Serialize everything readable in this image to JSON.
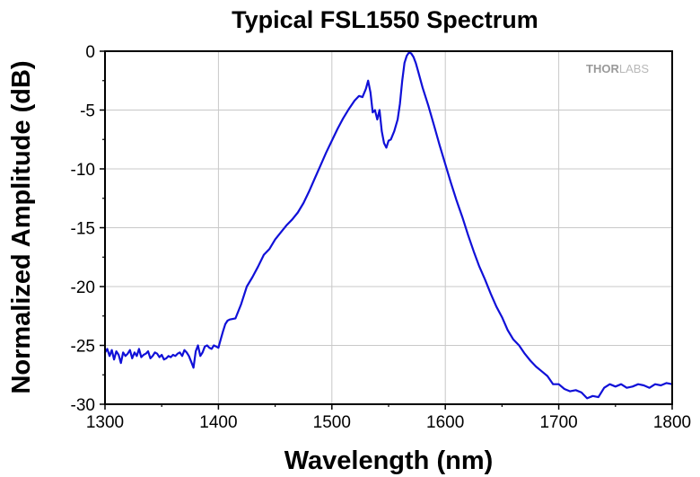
{
  "chart_data": {
    "type": "line",
    "title": "Typical FSL1550 Spectrum",
    "xlabel": "Wavelength (nm)",
    "ylabel": "Normalized Amplitude (dB)",
    "xlim": [
      1300,
      1800
    ],
    "ylim": [
      -30,
      0
    ],
    "xticks": [
      1300,
      1400,
      1500,
      1600,
      1700,
      1800
    ],
    "yticks": [
      0,
      -5,
      -10,
      -15,
      -20,
      -25,
      -30
    ],
    "grid": true,
    "logo": {
      "text_main": "THOR",
      "text_sub": "LABS"
    },
    "series": [
      {
        "color": "#1010d8",
        "x": [
          1300,
          1302,
          1304,
          1306,
          1308,
          1310,
          1312,
          1314,
          1316,
          1318,
          1320,
          1322,
          1324,
          1326,
          1328,
          1330,
          1332,
          1334,
          1336,
          1338,
          1340,
          1342,
          1344,
          1346,
          1348,
          1350,
          1352,
          1354,
          1356,
          1358,
          1360,
          1362,
          1364,
          1366,
          1368,
          1370,
          1372,
          1374,
          1376,
          1378,
          1380,
          1382,
          1384,
          1386,
          1388,
          1390,
          1392,
          1394,
          1396,
          1398,
          1400,
          1402,
          1404,
          1406,
          1408,
          1410,
          1415,
          1420,
          1425,
          1430,
          1435,
          1440,
          1445,
          1450,
          1455,
          1460,
          1465,
          1470,
          1475,
          1480,
          1485,
          1490,
          1495,
          1500,
          1505,
          1510,
          1515,
          1520,
          1524,
          1527,
          1530,
          1532,
          1534,
          1536,
          1538,
          1540,
          1542,
          1544,
          1546,
          1548,
          1550,
          1552,
          1555,
          1558,
          1560,
          1562,
          1564,
          1566,
          1568,
          1570,
          1572,
          1574,
          1576,
          1578,
          1580,
          1585,
          1590,
          1595,
          1600,
          1605,
          1610,
          1615,
          1620,
          1625,
          1630,
          1635,
          1640,
          1645,
          1650,
          1655,
          1660,
          1665,
          1670,
          1675,
          1680,
          1685,
          1690,
          1695,
          1700,
          1705,
          1710,
          1715,
          1720,
          1725,
          1730,
          1735,
          1740,
          1745,
          1750,
          1755,
          1760,
          1765,
          1770,
          1775,
          1780,
          1785,
          1790,
          1795,
          1800
        ],
        "y": [
          -25.6,
          -25.3,
          -25.9,
          -25.4,
          -26.2,
          -25.5,
          -25.8,
          -26.5,
          -25.6,
          -25.9,
          -25.7,
          -25.4,
          -26.1,
          -25.6,
          -25.9,
          -25.3,
          -26.0,
          -25.8,
          -25.7,
          -25.5,
          -26.1,
          -25.9,
          -25.6,
          -25.7,
          -26.0,
          -25.8,
          -26.2,
          -26.1,
          -25.9,
          -26.0,
          -25.8,
          -25.9,
          -25.7,
          -25.6,
          -25.9,
          -25.4,
          -25.6,
          -25.9,
          -26.4,
          -26.9,
          -25.5,
          -25.0,
          -25.9,
          -25.6,
          -25.1,
          -25.0,
          -25.2,
          -25.3,
          -25.0,
          -25.1,
          -25.2,
          -24.5,
          -23.8,
          -23.2,
          -22.9,
          -22.8,
          -22.7,
          -21.5,
          -20.0,
          -19.2,
          -18.3,
          -17.3,
          -16.8,
          -16.0,
          -15.4,
          -14.8,
          -14.3,
          -13.7,
          -12.9,
          -11.9,
          -10.8,
          -9.7,
          -8.6,
          -7.6,
          -6.6,
          -5.7,
          -4.9,
          -4.2,
          -3.8,
          -3.9,
          -3.2,
          -2.5,
          -3.5,
          -5.2,
          -5.0,
          -5.8,
          -5.0,
          -6.8,
          -7.8,
          -8.2,
          -7.6,
          -7.5,
          -6.8,
          -5.8,
          -4.5,
          -2.5,
          -1.0,
          -0.4,
          -0.1,
          -0.2,
          -0.5,
          -1.0,
          -1.7,
          -2.4,
          -3.1,
          -4.6,
          -6.3,
          -8.0,
          -9.6,
          -11.2,
          -12.7,
          -14.1,
          -15.6,
          -17.0,
          -18.3,
          -19.4,
          -20.6,
          -21.7,
          -22.6,
          -23.7,
          -24.5,
          -25.0,
          -25.7,
          -26.3,
          -26.8,
          -27.2,
          -27.6,
          -28.3,
          -28.3,
          -28.7,
          -28.9,
          -28.8,
          -29.0,
          -29.5,
          -29.3,
          -29.4,
          -28.6,
          -28.3,
          -28.5,
          -28.3,
          -28.6,
          -28.5,
          -28.3,
          -28.4,
          -28.6,
          -28.3,
          -28.4,
          -28.2,
          -28.3
        ]
      }
    ]
  }
}
